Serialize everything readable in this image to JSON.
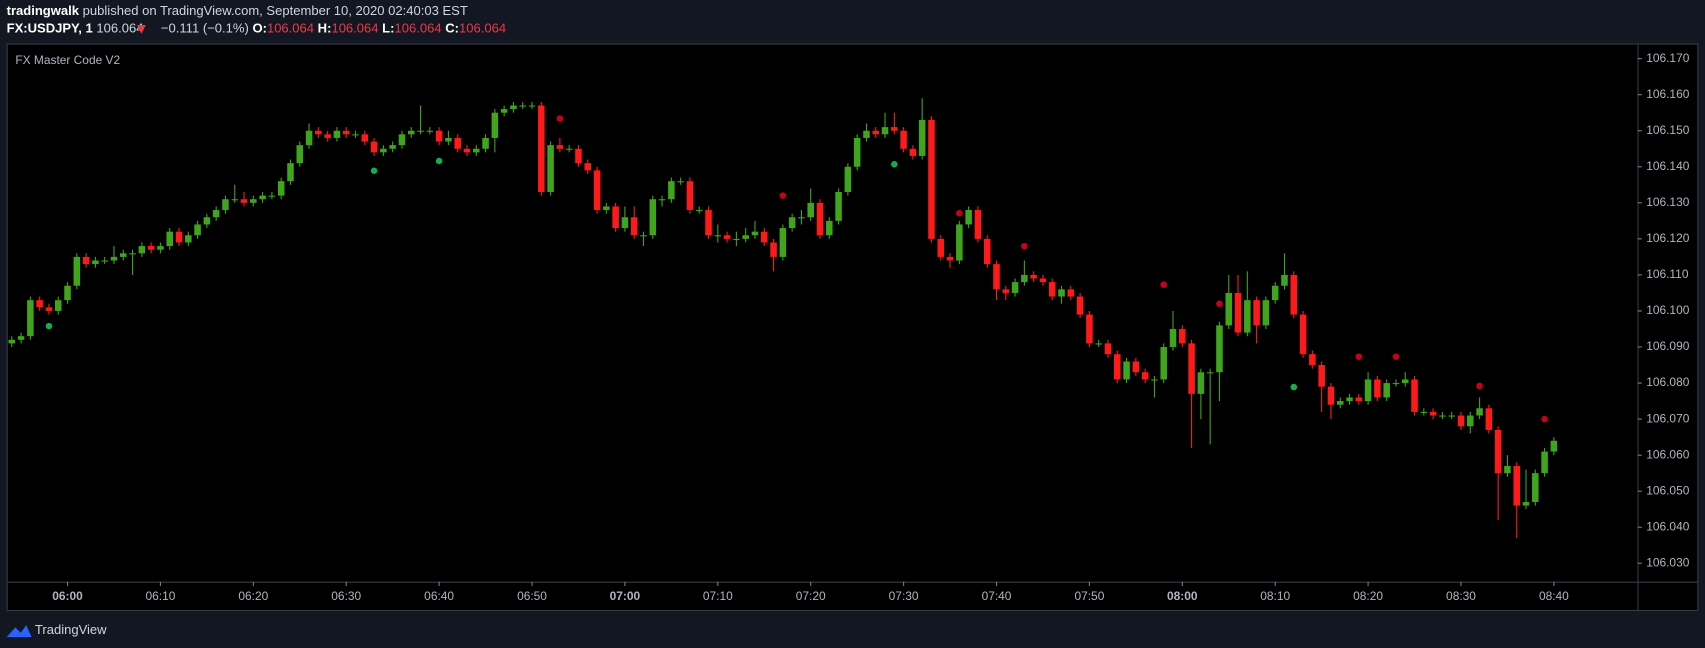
{
  "header": {
    "author": "tradingwalk",
    "published": "published on TradingView.com, September 10, 2020 02:40:03 EST",
    "symbol": "FX:USDJPY, 1",
    "price": "106.064",
    "change": "−0.111 (−0.1%)",
    "ohlc": [
      {
        "label": "O:",
        "value": "106.064"
      },
      {
        "label": "H:",
        "value": "106.064"
      },
      {
        "label": "L:",
        "value": "106.064"
      },
      {
        "label": "C:",
        "value": "106.064"
      }
    ]
  },
  "footer": {
    "brand": "TradingView"
  },
  "chart_data": {
    "type": "candlestick",
    "indicator": "FX Master Code V2",
    "up_color": "#3fa51c",
    "down_color": "#ff1a1a",
    "grid": false,
    "xlim": [
      -0.44,
      175
    ],
    "ylim": [
      106.0249,
      106.1742
    ],
    "yticks": [
      {
        "value": 106.03,
        "label": "106.030"
      },
      {
        "value": 106.04,
        "label": "106.040"
      },
      {
        "value": 106.05,
        "label": "106.050"
      },
      {
        "value": 106.06,
        "label": "106.060"
      },
      {
        "value": 106.07,
        "label": "106.070"
      },
      {
        "value": 106.08,
        "label": "106.080"
      },
      {
        "value": 106.09,
        "label": "106.090"
      },
      {
        "value": 106.1,
        "label": "106.100"
      },
      {
        "value": 106.11,
        "label": "106.110"
      },
      {
        "value": 106.12,
        "label": "106.120"
      },
      {
        "value": 106.13,
        "label": "106.130"
      },
      {
        "value": 106.14,
        "label": "106.140"
      },
      {
        "value": 106.15,
        "label": "106.150"
      },
      {
        "value": 106.16,
        "label": "106.160"
      },
      {
        "value": 106.17,
        "label": "106.170"
      }
    ],
    "xticks": [
      {
        "value": 6,
        "label": "06:00"
      },
      {
        "value": 16,
        "label": "06:10"
      },
      {
        "value": 26,
        "label": "06:20"
      },
      {
        "value": 36,
        "label": "06:30"
      },
      {
        "value": 46,
        "label": "06:40"
      },
      {
        "value": 56,
        "label": "06:50"
      },
      {
        "value": 66,
        "label": "07:00"
      },
      {
        "value": 76,
        "label": "07:10"
      },
      {
        "value": 86,
        "label": "07:20"
      },
      {
        "value": 96,
        "label": "07:30"
      },
      {
        "value": 106,
        "label": "07:40"
      },
      {
        "value": 116,
        "label": "07:50"
      },
      {
        "value": 126,
        "label": "08:00"
      },
      {
        "value": 136,
        "label": "08:10"
      },
      {
        "value": 146,
        "label": "08:20"
      },
      {
        "value": 156,
        "label": "08:30"
      },
      {
        "value": 166,
        "label": "08:40"
      }
    ],
    "candles": [
      [
        106.091,
        106.093,
        106.09,
        106.092
      ],
      [
        106.092,
        106.094,
        106.091,
        106.093
      ],
      [
        106.093,
        106.104,
        106.092,
        106.103
      ],
      [
        106.103,
        106.104,
        106.1,
        106.101
      ],
      [
        106.101,
        106.102,
        106.099,
        106.1
      ],
      [
        106.1,
        106.104,
        106.099,
        106.103
      ],
      [
        106.103,
        106.108,
        106.102,
        106.107
      ],
      [
        106.107,
        106.116,
        106.106,
        106.115
      ],
      [
        106.115,
        106.116,
        106.112,
        106.113
      ],
      [
        106.113,
        106.115,
        106.112,
        106.114
      ],
      [
        106.114,
        106.115,
        106.113,
        106.114
      ],
      [
        106.114,
        106.118,
        106.113,
        106.115
      ],
      [
        106.115,
        106.117,
        106.114,
        106.116
      ],
      [
        106.116,
        106.117,
        106.11,
        106.116
      ],
      [
        106.116,
        106.119,
        106.115,
        106.118
      ],
      [
        106.118,
        106.119,
        106.116,
        106.117
      ],
      [
        106.117,
        106.119,
        106.116,
        106.118
      ],
      [
        106.118,
        106.123,
        106.117,
        106.122
      ],
      [
        106.122,
        106.123,
        106.118,
        106.119
      ],
      [
        106.119,
        106.122,
        106.118,
        106.121
      ],
      [
        106.121,
        106.125,
        106.12,
        106.124
      ],
      [
        106.124,
        106.127,
        106.123,
        106.126
      ],
      [
        106.126,
        106.129,
        106.125,
        106.128
      ],
      [
        106.128,
        106.132,
        106.127,
        106.131
      ],
      [
        106.131,
        106.135,
        106.13,
        106.131
      ],
      [
        106.131,
        106.133,
        106.129,
        106.13
      ],
      [
        106.13,
        106.132,
        106.129,
        106.131
      ],
      [
        106.131,
        106.133,
        106.13,
        106.132
      ],
      [
        106.132,
        106.133,
        106.131,
        106.132
      ],
      [
        106.132,
        106.137,
        106.131,
        106.136
      ],
      [
        106.136,
        106.142,
        106.135,
        106.141
      ],
      [
        106.141,
        106.147,
        106.14,
        106.146
      ],
      [
        106.146,
        106.152,
        106.145,
        106.15
      ],
      [
        106.15,
        106.151,
        106.148,
        106.149
      ],
      [
        106.149,
        106.15,
        106.147,
        106.148
      ],
      [
        106.148,
        106.151,
        106.147,
        106.15
      ],
      [
        106.15,
        106.151,
        106.148,
        106.149
      ],
      [
        106.149,
        106.15,
        106.148,
        106.149
      ],
      [
        106.149,
        106.15,
        106.146,
        106.147
      ],
      [
        106.147,
        106.148,
        106.143,
        106.144
      ],
      [
        106.144,
        106.146,
        106.143,
        106.145
      ],
      [
        106.145,
        106.147,
        106.144,
        106.146
      ],
      [
        106.146,
        106.15,
        106.145,
        106.149
      ],
      [
        106.149,
        106.151,
        106.148,
        106.15
      ],
      [
        106.15,
        106.157,
        106.149,
        106.15
      ],
      [
        106.15,
        106.151,
        106.149,
        106.15
      ],
      [
        106.15,
        106.151,
        106.146,
        106.147
      ],
      [
        106.147,
        106.15,
        106.146,
        106.148
      ],
      [
        106.148,
        106.149,
        106.144,
        106.145
      ],
      [
        106.145,
        106.146,
        106.143,
        106.144
      ],
      [
        106.144,
        106.146,
        106.143,
        106.145
      ],
      [
        106.145,
        106.149,
        106.144,
        106.148
      ],
      [
        106.148,
        106.156,
        106.144,
        106.155
      ],
      [
        106.155,
        106.157,
        106.154,
        106.156
      ],
      [
        106.156,
        106.158,
        106.155,
        106.157
      ],
      [
        106.157,
        106.158,
        106.156,
        106.157
      ],
      [
        106.157,
        106.158,
        106.156,
        106.157
      ],
      [
        106.157,
        106.158,
        106.132,
        106.133
      ],
      [
        106.133,
        106.147,
        106.132,
        106.146
      ],
      [
        106.146,
        106.148,
        106.144,
        106.145
      ],
      [
        106.145,
        106.146,
        106.144,
        106.145
      ],
      [
        106.145,
        106.146,
        106.14,
        106.141
      ],
      [
        106.141,
        106.142,
        106.138,
        106.139
      ],
      [
        106.139,
        106.14,
        106.127,
        106.128
      ],
      [
        106.128,
        106.13,
        106.127,
        106.129
      ],
      [
        106.129,
        106.13,
        106.122,
        106.123
      ],
      [
        106.123,
        106.129,
        106.122,
        106.126
      ],
      [
        106.126,
        106.129,
        106.12,
        106.121
      ],
      [
        106.121,
        106.122,
        106.118,
        106.121
      ],
      [
        106.121,
        106.132,
        106.12,
        106.131
      ],
      [
        106.131,
        106.132,
        106.129,
        106.131
      ],
      [
        106.131,
        106.137,
        106.13,
        106.136
      ],
      [
        106.136,
        106.137,
        106.135,
        106.136
      ],
      [
        106.136,
        106.137,
        106.127,
        106.128
      ],
      [
        106.128,
        106.129,
        106.127,
        106.128
      ],
      [
        106.128,
        106.129,
        106.12,
        106.121
      ],
      [
        106.121,
        106.124,
        106.119,
        106.121
      ],
      [
        106.121,
        106.122,
        106.119,
        106.12
      ],
      [
        106.12,
        106.122,
        106.118,
        106.12
      ],
      [
        106.12,
        106.123,
        106.119,
        106.121
      ],
      [
        106.121,
        106.125,
        106.12,
        106.122
      ],
      [
        106.122,
        106.123,
        106.118,
        106.119
      ],
      [
        106.119,
        106.12,
        106.111,
        106.115
      ],
      [
        106.115,
        106.124,
        106.114,
        106.123
      ],
      [
        106.123,
        106.127,
        106.122,
        106.126
      ],
      [
        106.126,
        106.128,
        106.124,
        106.126
      ],
      [
        106.126,
        106.134,
        106.125,
        106.13
      ],
      [
        106.13,
        106.131,
        106.12,
        106.121
      ],
      [
        106.121,
        106.126,
        106.12,
        106.125
      ],
      [
        106.125,
        106.134,
        106.124,
        106.133
      ],
      [
        106.133,
        106.141,
        106.132,
        106.14
      ],
      [
        106.14,
        106.149,
        106.139,
        106.148
      ],
      [
        106.148,
        106.152,
        106.147,
        106.15
      ],
      [
        106.15,
        106.151,
        106.148,
        106.149
      ],
      [
        106.149,
        106.155,
        106.148,
        106.151
      ],
      [
        106.151,
        106.155,
        106.149,
        106.15
      ],
      [
        106.15,
        106.151,
        106.144,
        106.145
      ],
      [
        106.145,
        106.146,
        106.142,
        106.143
      ],
      [
        106.143,
        106.159,
        106.142,
        106.153
      ],
      [
        106.153,
        106.154,
        106.119,
        106.12
      ],
      [
        106.12,
        106.121,
        106.114,
        106.115
      ],
      [
        106.115,
        106.116,
        106.112,
        106.114
      ],
      [
        106.114,
        106.125,
        106.113,
        106.124
      ],
      [
        106.124,
        106.129,
        106.123,
        106.128
      ],
      [
        106.128,
        106.129,
        106.119,
        106.12
      ],
      [
        106.12,
        106.121,
        106.112,
        106.113
      ],
      [
        106.113,
        106.114,
        106.103,
        106.106
      ],
      [
        106.106,
        106.107,
        106.103,
        106.105
      ],
      [
        106.105,
        106.109,
        106.104,
        106.108
      ],
      [
        106.108,
        106.114,
        106.107,
        106.11
      ],
      [
        106.11,
        106.111,
        106.108,
        106.109
      ],
      [
        106.109,
        106.11,
        106.107,
        106.108
      ],
      [
        106.108,
        106.109,
        106.103,
        106.104
      ],
      [
        106.104,
        106.107,
        106.102,
        106.106
      ],
      [
        106.106,
        106.107,
        106.103,
        106.104
      ],
      [
        106.104,
        106.105,
        106.098,
        106.099
      ],
      [
        106.099,
        106.1,
        106.09,
        106.091
      ],
      [
        106.091,
        106.092,
        106.09,
        106.091
      ],
      [
        106.091,
        106.092,
        106.087,
        106.088
      ],
      [
        106.088,
        106.089,
        106.08,
        106.081
      ],
      [
        106.081,
        106.087,
        106.08,
        106.086
      ],
      [
        106.086,
        106.087,
        106.082,
        106.083
      ],
      [
        106.083,
        106.084,
        106.08,
        106.081
      ],
      [
        106.081,
        106.082,
        106.076,
        106.081
      ],
      [
        106.081,
        106.091,
        106.08,
        106.09
      ],
      [
        106.09,
        106.1,
        106.089,
        106.095
      ],
      [
        106.095,
        106.096,
        106.09,
        106.091
      ],
      [
        106.091,
        106.092,
        106.062,
        106.077
      ],
      [
        106.077,
        106.084,
        106.07,
        106.083
      ],
      [
        106.083,
        106.084,
        106.063,
        106.083
      ],
      [
        106.083,
        106.097,
        106.075,
        106.096
      ],
      [
        106.096,
        106.11,
        106.095,
        106.105
      ],
      [
        106.105,
        106.11,
        106.093,
        106.094
      ],
      [
        106.094,
        106.111,
        106.093,
        106.103
      ],
      [
        106.103,
        106.104,
        106.091,
        106.096
      ],
      [
        106.096,
        106.104,
        106.095,
        106.103
      ],
      [
        106.103,
        106.108,
        106.102,
        106.107
      ],
      [
        106.107,
        106.116,
        106.106,
        106.11
      ],
      [
        106.11,
        106.111,
        106.098,
        106.099
      ],
      [
        106.099,
        106.1,
        106.087,
        106.088
      ],
      [
        106.088,
        106.089,
        106.084,
        106.085
      ],
      [
        106.085,
        106.086,
        106.072,
        106.079
      ],
      [
        106.079,
        106.08,
        106.07,
        106.074
      ],
      [
        106.074,
        106.076,
        106.073,
        106.075
      ],
      [
        106.075,
        106.077,
        106.074,
        106.076
      ],
      [
        106.076,
        106.077,
        106.074,
        106.075
      ],
      [
        106.075,
        106.083,
        106.074,
        106.081
      ],
      [
        106.081,
        106.082,
        106.075,
        106.076
      ],
      [
        106.076,
        106.081,
        106.075,
        106.08
      ],
      [
        106.08,
        106.081,
        106.079,
        106.08
      ],
      [
        106.08,
        106.083,
        106.079,
        106.081
      ],
      [
        106.081,
        106.082,
        106.071,
        106.072
      ],
      [
        106.072,
        106.073,
        106.071,
        106.072
      ],
      [
        106.072,
        106.073,
        106.07,
        106.071
      ],
      [
        106.071,
        106.072,
        106.07,
        106.071
      ],
      [
        106.071,
        106.072,
        106.07,
        106.071
      ],
      [
        106.071,
        106.072,
        106.067,
        106.068
      ],
      [
        106.068,
        106.072,
        106.066,
        106.071
      ],
      [
        106.071,
        106.076,
        106.07,
        106.073
      ],
      [
        106.073,
        106.074,
        106.066,
        106.067
      ],
      [
        106.067,
        106.068,
        106.042,
        106.055
      ],
      [
        106.055,
        106.06,
        106.054,
        106.057
      ],
      [
        106.057,
        106.058,
        106.037,
        106.046
      ],
      [
        106.046,
        106.056,
        106.045,
        106.047
      ],
      [
        106.047,
        106.056,
        106.046,
        106.055
      ],
      [
        106.055,
        106.062,
        106.054,
        106.061
      ],
      [
        106.061,
        106.065,
        106.06,
        106.064
      ]
    ],
    "signals": [
      {
        "index": 4,
        "price": 106.0958,
        "color": "#12b04a"
      },
      {
        "index": 39,
        "price": 106.1389,
        "color": "#12b04a"
      },
      {
        "index": 46,
        "price": 106.1416,
        "color": "#12b04a"
      },
      {
        "index": 95,
        "price": 106.1407,
        "color": "#12b04a"
      },
      {
        "index": 138,
        "price": 106.0789,
        "color": "#12b04a"
      },
      {
        "index": 59,
        "price": 106.1534,
        "color": "#c8001e"
      },
      {
        "index": 83,
        "price": 106.132,
        "color": "#c8001e"
      },
      {
        "index": 102,
        "price": 106.1271,
        "color": "#c8001e"
      },
      {
        "index": 109,
        "price": 106.118,
        "color": "#c8001e"
      },
      {
        "index": 124,
        "price": 106.1073,
        "color": "#c8001e"
      },
      {
        "index": 130,
        "price": 106.102,
        "color": "#c8001e"
      },
      {
        "index": 145,
        "price": 106.0873,
        "color": "#c8001e"
      },
      {
        "index": 149,
        "price": 106.0873,
        "color": "#c8001e"
      },
      {
        "index": 158,
        "price": 106.0792,
        "color": "#c8001e"
      },
      {
        "index": 165,
        "price": 106.07,
        "color": "#c8001e"
      }
    ]
  }
}
